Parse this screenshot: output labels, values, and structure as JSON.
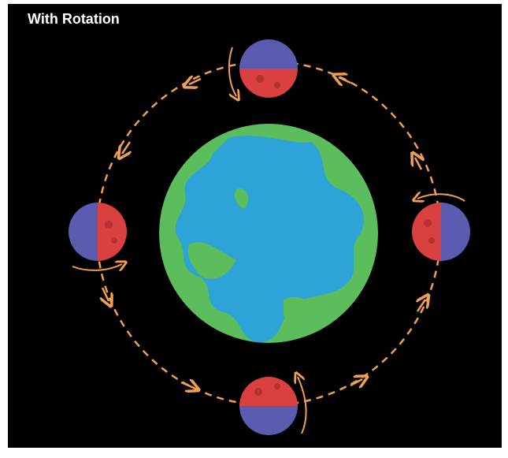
{
  "title": "With Rotation"
}
